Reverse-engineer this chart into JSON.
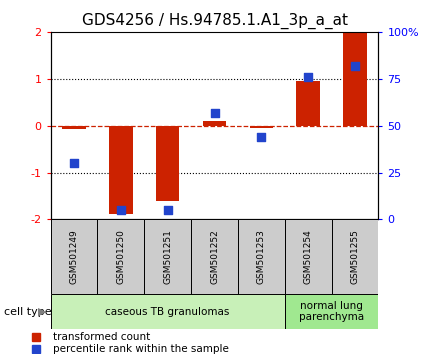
{
  "title": "GDS4256 / Hs.94785.1.A1_3p_a_at",
  "samples": [
    "GSM501249",
    "GSM501250",
    "GSM501251",
    "GSM501252",
    "GSM501253",
    "GSM501254",
    "GSM501255"
  ],
  "transformed_count": [
    -0.08,
    -1.88,
    -1.6,
    0.1,
    -0.05,
    0.95,
    2.0
  ],
  "percentile_rank": [
    30,
    5,
    5,
    57,
    44,
    76,
    82
  ],
  "ylim": [
    -2,
    2
  ],
  "y2lim": [
    0,
    100
  ],
  "yticks": [
    -2,
    -1,
    0,
    1,
    2
  ],
  "y2ticks": [
    0,
    25,
    50,
    75,
    100
  ],
  "y2ticklabels": [
    "0",
    "25",
    "50",
    "75",
    "100%"
  ],
  "bar_color": "#cc2200",
  "dot_color": "#2244cc",
  "zero_line_color": "#cc2200",
  "hline_color": "#000000",
  "groups": [
    {
      "label": "caseous TB granulomas",
      "indices": [
        0,
        1,
        2,
        3,
        4
      ],
      "color": "#c8f0b8"
    },
    {
      "label": "normal lung\nparenchyma",
      "indices": [
        5,
        6
      ],
      "color": "#a0e890"
    }
  ],
  "legend_items": [
    {
      "label": "transformed count",
      "color": "#cc2200"
    },
    {
      "label": "percentile rank within the sample",
      "color": "#2244cc"
    }
  ],
  "cell_type_label": "cell type",
  "bar_width": 0.5,
  "title_fontsize": 11,
  "tick_fontsize": 8,
  "dot_size": 38,
  "background_plot": "#ffffff",
  "background_sample": "#cccccc"
}
